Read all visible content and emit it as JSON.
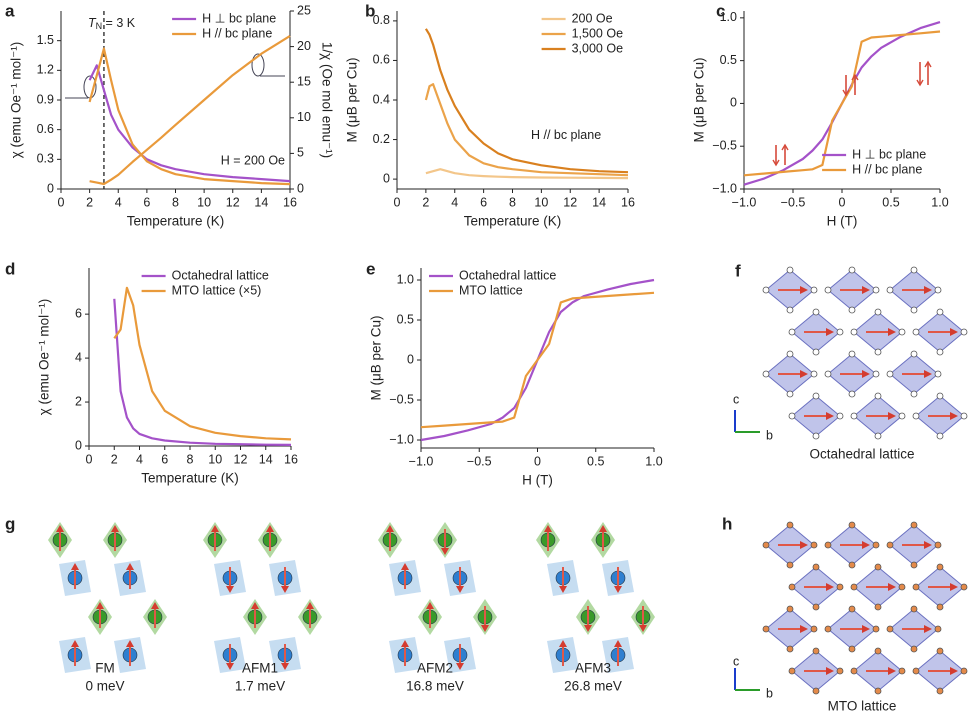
{
  "chart_data": [
    {
      "type": "line",
      "panel": "a",
      "xlabel": "Temperature (K)",
      "ylabel": "χ (emu Oe⁻¹ mol⁻¹)",
      "y2label": "1/χ (Oe mol emu⁻¹)",
      "x": [
        2,
        2.5,
        3,
        3.5,
        4,
        5,
        6,
        7,
        8,
        10,
        12,
        14,
        16
      ],
      "series": [
        {
          "name": "H ⊥ bc plane",
          "color": "#a452c9",
          "values": [
            1.1,
            1.25,
            1.0,
            0.75,
            0.6,
            0.42,
            0.3,
            0.24,
            0.2,
            0.15,
            0.12,
            0.1,
            0.08
          ]
        },
        {
          "name": "H // bc plane",
          "color": "#e99a3b",
          "values": [
            0.88,
            1.15,
            1.42,
            1.1,
            0.8,
            0.45,
            0.28,
            0.2,
            0.15,
            0.1,
            0.08,
            0.06,
            0.05
          ]
        },
        {
          "color": "#e99a3b",
          "axis": "y2",
          "values": [
            1.1,
            0.9,
            0.7,
            1.3,
            2,
            3.8,
            5.5,
            7.2,
            9,
            12.5,
            16,
            19,
            21.5
          ]
        }
      ],
      "xlim": [
        0,
        16
      ],
      "xticks": [
        0,
        2,
        4,
        6,
        8,
        10,
        12,
        14,
        16
      ],
      "ylim": [
        0,
        1.8
      ],
      "yticks": [
        0,
        0.3,
        0.6,
        0.9,
        1.2,
        1.5
      ],
      "y2lim": [
        0,
        25
      ],
      "y2ticks": [
        0,
        5,
        10,
        15,
        20,
        25
      ],
      "vline": 3,
      "vline_label": [
        "T",
        "N",
        " = 3 K"
      ],
      "annotations": [
        "H = 200 Oe"
      ],
      "legend": "upper right"
    },
    {
      "type": "line",
      "panel": "b",
      "xlabel": "Temperature (K)",
      "ylabel": "M (μB per Cu)",
      "x": [
        2,
        2.25,
        2.5,
        3,
        3.5,
        4,
        5,
        6,
        7,
        8,
        10,
        12,
        14,
        16
      ],
      "series": [
        {
          "name": "200 Oe",
          "color": "#f3c68a",
          "values": [
            0.03,
            0.035,
            0.04,
            0.05,
            0.04,
            0.03,
            0.02,
            0.015,
            0.012,
            0.01,
            0.008,
            0.007,
            0.006,
            0.005
          ]
        },
        {
          "name": "1,500 Oe",
          "color": "#eba34a",
          "values": [
            0.4,
            0.47,
            0.48,
            0.38,
            0.28,
            0.2,
            0.12,
            0.08,
            0.06,
            0.05,
            0.035,
            0.03,
            0.025,
            0.02
          ]
        },
        {
          "name": "3,000 Oe",
          "color": "#d9801f",
          "values": [
            0.76,
            0.73,
            0.68,
            0.55,
            0.45,
            0.37,
            0.25,
            0.18,
            0.13,
            0.1,
            0.07,
            0.05,
            0.04,
            0.035
          ]
        }
      ],
      "xlim": [
        0,
        16
      ],
      "xticks": [
        0,
        2,
        4,
        6,
        8,
        10,
        12,
        14,
        16
      ],
      "ylim": [
        -0.05,
        0.85
      ],
      "yticks": [
        0,
        0.2,
        0.4,
        0.6,
        0.8
      ],
      "annotations": [
        "H // bc plane"
      ],
      "legend": "upper right"
    },
    {
      "type": "line",
      "panel": "c",
      "xlabel": "H (T)",
      "ylabel": "M (μB per Cu)",
      "x": [
        -1,
        -0.8,
        -0.6,
        -0.4,
        -0.3,
        -0.2,
        -0.1,
        0,
        0.1,
        0.2,
        0.3,
        0.4,
        0.6,
        0.8,
        1
      ],
      "series": [
        {
          "name": "H ⊥ bc plane",
          "color": "#a452c9",
          "values": [
            -0.95,
            -0.88,
            -0.78,
            -0.65,
            -0.55,
            -0.42,
            -0.22,
            0,
            0.22,
            0.42,
            0.55,
            0.65,
            0.78,
            0.88,
            0.95
          ]
        },
        {
          "name": "H // bc plane",
          "color": "#e99a3b",
          "values": [
            -0.84,
            -0.82,
            -0.8,
            -0.78,
            -0.77,
            -0.72,
            -0.2,
            0,
            0.2,
            0.72,
            0.77,
            0.78,
            0.8,
            0.82,
            0.84
          ]
        }
      ],
      "xlim": [
        -1,
        1
      ],
      "xticks": [
        {
          "value": -1,
          "label": "−1.0"
        },
        {
          "value": -0.5,
          "label": "−0.5"
        },
        0,
        0.5,
        {
          "value": 1,
          "label": "1.0"
        }
      ],
      "ylim": [
        -1,
        1.08
      ],
      "yticks": [
        {
          "value": -1,
          "label": "−1.0"
        },
        {
          "value": -0.5,
          "label": "−0.5"
        },
        0,
        0.5,
        {
          "value": 1,
          "label": "1.0"
        }
      ],
      "legend": "lower right"
    },
    {
      "type": "line",
      "panel": "d",
      "xlabel": "Temperature (K)",
      "ylabel": "χ (emu Oe⁻¹ mol⁻¹)",
      "x": [
        2,
        2.5,
        3,
        3.5,
        4,
        5,
        6,
        8,
        10,
        12,
        14,
        16
      ],
      "series": [
        {
          "name": "Octahedral lattice",
          "color": "#a452c9",
          "values": [
            6.7,
            2.5,
            1.3,
            0.8,
            0.55,
            0.35,
            0.25,
            0.15,
            0.1,
            0.08,
            0.06,
            0.05
          ]
        },
        {
          "name": "MTO lattice (×5)",
          "color": "#e99a3b",
          "values": [
            4.9,
            5.3,
            7.2,
            6.4,
            4.6,
            2.5,
            1.6,
            0.9,
            0.6,
            0.45,
            0.35,
            0.3
          ]
        }
      ],
      "xlim": [
        0,
        16
      ],
      "xticks": [
        0,
        2,
        4,
        6,
        8,
        10,
        12,
        14,
        16
      ],
      "ylim": [
        0,
        8.1
      ],
      "yticks": [
        0,
        2,
        4,
        6
      ],
      "legend": "upper right"
    },
    {
      "type": "line",
      "panel": "e",
      "xlabel": "H (T)",
      "ylabel": "M (μB per Cu)",
      "x": [
        -1,
        -0.8,
        -0.6,
        -0.4,
        -0.3,
        -0.2,
        -0.1,
        0,
        0.1,
        0.2,
        0.3,
        0.4,
        0.6,
        0.8,
        1
      ],
      "series": [
        {
          "name": "Octahedral lattice",
          "color": "#a452c9",
          "values": [
            -1,
            -0.95,
            -0.88,
            -0.8,
            -0.72,
            -0.6,
            -0.35,
            0,
            0.35,
            0.6,
            0.72,
            0.8,
            0.88,
            0.95,
            1
          ]
        },
        {
          "name": "MTO lattice",
          "color": "#e99a3b",
          "values": [
            -0.84,
            -0.82,
            -0.8,
            -0.78,
            -0.77,
            -0.72,
            -0.2,
            0,
            0.2,
            0.72,
            0.77,
            0.78,
            0.8,
            0.82,
            0.84
          ]
        }
      ],
      "xlim": [
        -1,
        1
      ],
      "xticks": [
        {
          "value": -1,
          "label": "−1.0"
        },
        {
          "value": -0.5,
          "label": "−0.5"
        },
        0,
        0.5,
        {
          "value": 1,
          "label": "1.0"
        }
      ],
      "ylim": [
        -1.1,
        1.15
      ],
      "yticks": [
        {
          "value": -1,
          "label": "−1.0"
        },
        {
          "value": -0.5,
          "label": "−0.5"
        },
        0,
        0.5,
        {
          "value": 1,
          "label": "1.0"
        }
      ],
      "legend": "upper left"
    }
  ],
  "panel_f": {
    "letter": "f",
    "caption": "Octahedral lattice",
    "axis_c": "c",
    "axis_b": "b"
  },
  "panel_g": {
    "letter": "g",
    "configs": [
      {
        "name": "FM",
        "energy": "0 meV"
      },
      {
        "name": "AFM1",
        "energy": "1.7 meV"
      },
      {
        "name": "AFM2",
        "energy": "16.8 meV"
      },
      {
        "name": "AFM3",
        "energy": "26.8 meV"
      }
    ]
  },
  "panel_h": {
    "letter": "h",
    "caption": "MTO lattice",
    "axis_c": "c",
    "axis_b": "b"
  }
}
